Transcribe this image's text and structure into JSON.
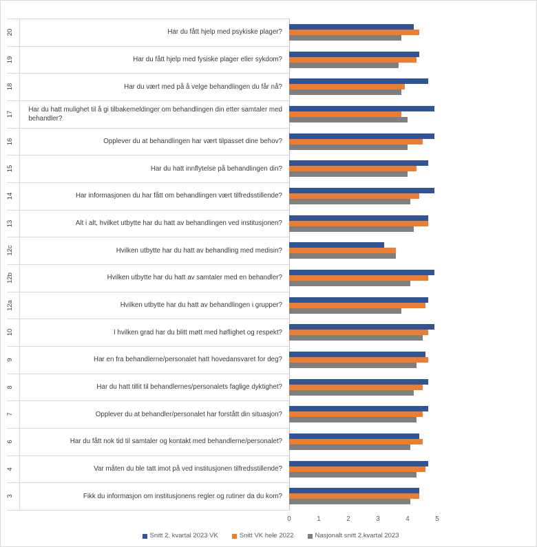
{
  "chart_data": {
    "type": "bar",
    "orientation": "horizontal",
    "category_codes": [
      "20",
      "19",
      "18",
      "17",
      "16",
      "15",
      "14",
      "13",
      "12c",
      "12b",
      "12a",
      "10",
      "9",
      "8",
      "7",
      "6",
      "4",
      "3"
    ],
    "categories": [
      "Har du fått hjelp med psykiske plager?",
      "Har du fått hjelp med fysiske plager eller sykdom?",
      "Har du vært med på å velge behandlingen du får nå?",
      "Har du hatt mulighet til å gi tilbakemeldinger om behandlingen din etter samtaler med\nbehandler?",
      "Opplever du at behandlingen har vært tilpasset dine behov?",
      "Har du hatt innflytelse på behandlingen din?",
      "Har informasjonen du har fått om behandlingen vært tilfredsstillende?",
      "Alt i alt, hvilket utbytte har du hatt av behandlingen ved institusjonen?",
      "Hvilken utbytte har du hatt av behandling med medisin?",
      "Hvilken utbytte har du hatt av samtaler med en behandler?",
      "Hvilken utbytte har du hatt av behandlingen i grupper?",
      "I hvilken grad har du blitt møtt med høflighet og respekt?",
      "Har en fra behandlerne/personalet hatt hovedansvaret for deg?",
      "Har du hatt tillit til behandlernes/personalets faglige dyktighet?",
      "Opplever du at behandler/personalet har forstått din situasjon?",
      "Har du fått nok tid til samtaler og kontakt med behandlerne/personalet?",
      "Var måten du ble tatt imot på ved institusjonen tilfredsstillende?",
      "Fikk du informasjon om institusjonens regler og rutiner da du kom?"
    ],
    "series": [
      {
        "name": "Snitt 2. kvartal 2023 VK",
        "color": "#2F5597",
        "values": [
          4.2,
          4.4,
          4.7,
          4.9,
          4.9,
          4.7,
          4.9,
          4.7,
          3.2,
          4.9,
          4.7,
          4.9,
          4.6,
          4.7,
          4.7,
          4.4,
          4.7,
          4.4
        ]
      },
      {
        "name": "Snitt VK hele 2022",
        "color": "#ED7D31",
        "values": [
          4.4,
          4.3,
          3.9,
          3.8,
          4.5,
          4.3,
          4.4,
          4.7,
          3.6,
          4.7,
          4.6,
          4.7,
          4.7,
          4.5,
          4.5,
          4.5,
          4.6,
          4.4
        ]
      },
      {
        "name": "Nasjonalt snitt 2.kvartal 2023",
        "color": "#7F7F7F",
        "values": [
          3.8,
          3.7,
          3.8,
          4.0,
          4.0,
          4.0,
          4.1,
          4.2,
          3.6,
          4.1,
          3.8,
          4.5,
          4.3,
          4.2,
          4.3,
          4.1,
          4.3,
          4.1
        ]
      }
    ],
    "xlim": [
      0,
      5
    ],
    "xticks": [
      0,
      1,
      2,
      3,
      4,
      5
    ],
    "grid": false,
    "legend": "bottom"
  }
}
